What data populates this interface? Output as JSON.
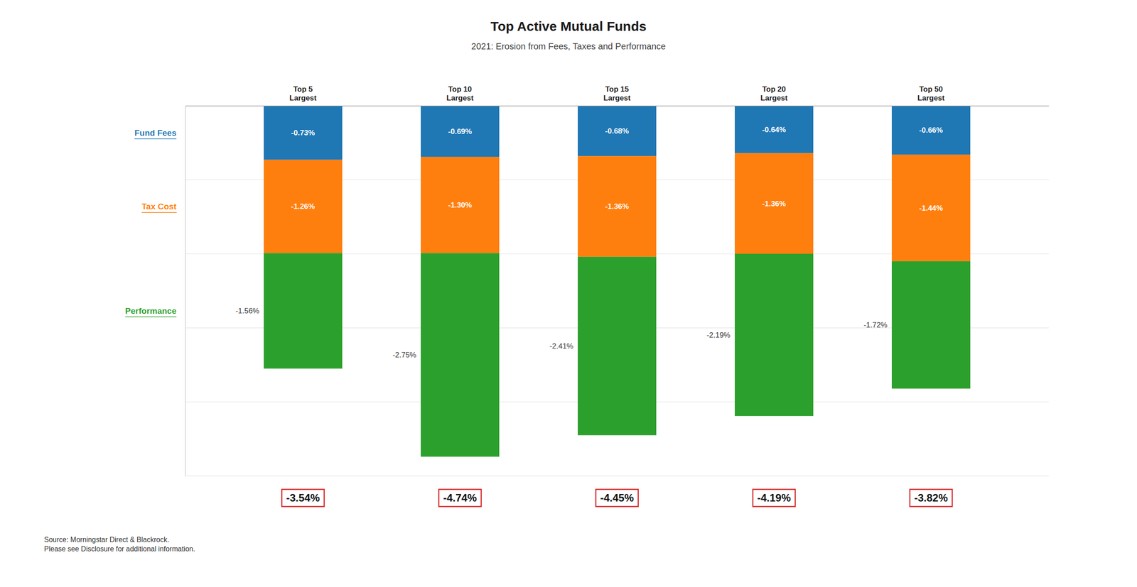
{
  "chart_data": {
    "type": "bar",
    "stacked": true,
    "title": "Top Active Mutual Funds",
    "subtitle": "2021: Erosion from Fees, Taxes and Performance",
    "categories": [
      "Top 5\nLargest",
      "Top 10\nLargest",
      "Top 15\nLargest",
      "Top 20\nLargest",
      "Top 50\nLargest"
    ],
    "series": [
      {
        "name": "Fund Fees",
        "values": [
          -0.73,
          -0.69,
          -0.68,
          -0.64,
          -0.66
        ],
        "value_labels": [
          "-0.73%",
          "-0.69%",
          "-0.68%",
          "-0.64%",
          "-0.66%"
        ]
      },
      {
        "name": "Tax Cost",
        "values": [
          -1.26,
          -1.3,
          -1.36,
          -1.36,
          -1.44
        ],
        "value_labels": [
          "-1.26%",
          "-1.30%",
          "-1.36%",
          "-1.36%",
          "-1.44%"
        ]
      },
      {
        "name": "Performance",
        "values": [
          -1.56,
          -2.75,
          -2.41,
          -2.19,
          -1.72
        ],
        "value_labels": [
          "-1.56%",
          "-2.75%",
          "-2.41%",
          "-2.19%",
          "-1.72%"
        ]
      }
    ],
    "ylim": [
      -5.0,
      0.0
    ],
    "yticks": [
      -5,
      -4,
      -3,
      -2,
      -1,
      0
    ],
    "grid": true,
    "tick_labels": "x",
    "data_labels": true,
    "totals": [
      "-3.54%",
      "-4.74%",
      "-4.45%",
      "-4.19%",
      "-3.82%"
    ],
    "source": "Source: Morningstar Direct & Blackrock.\nPlease see Disclosure for additional information."
  }
}
